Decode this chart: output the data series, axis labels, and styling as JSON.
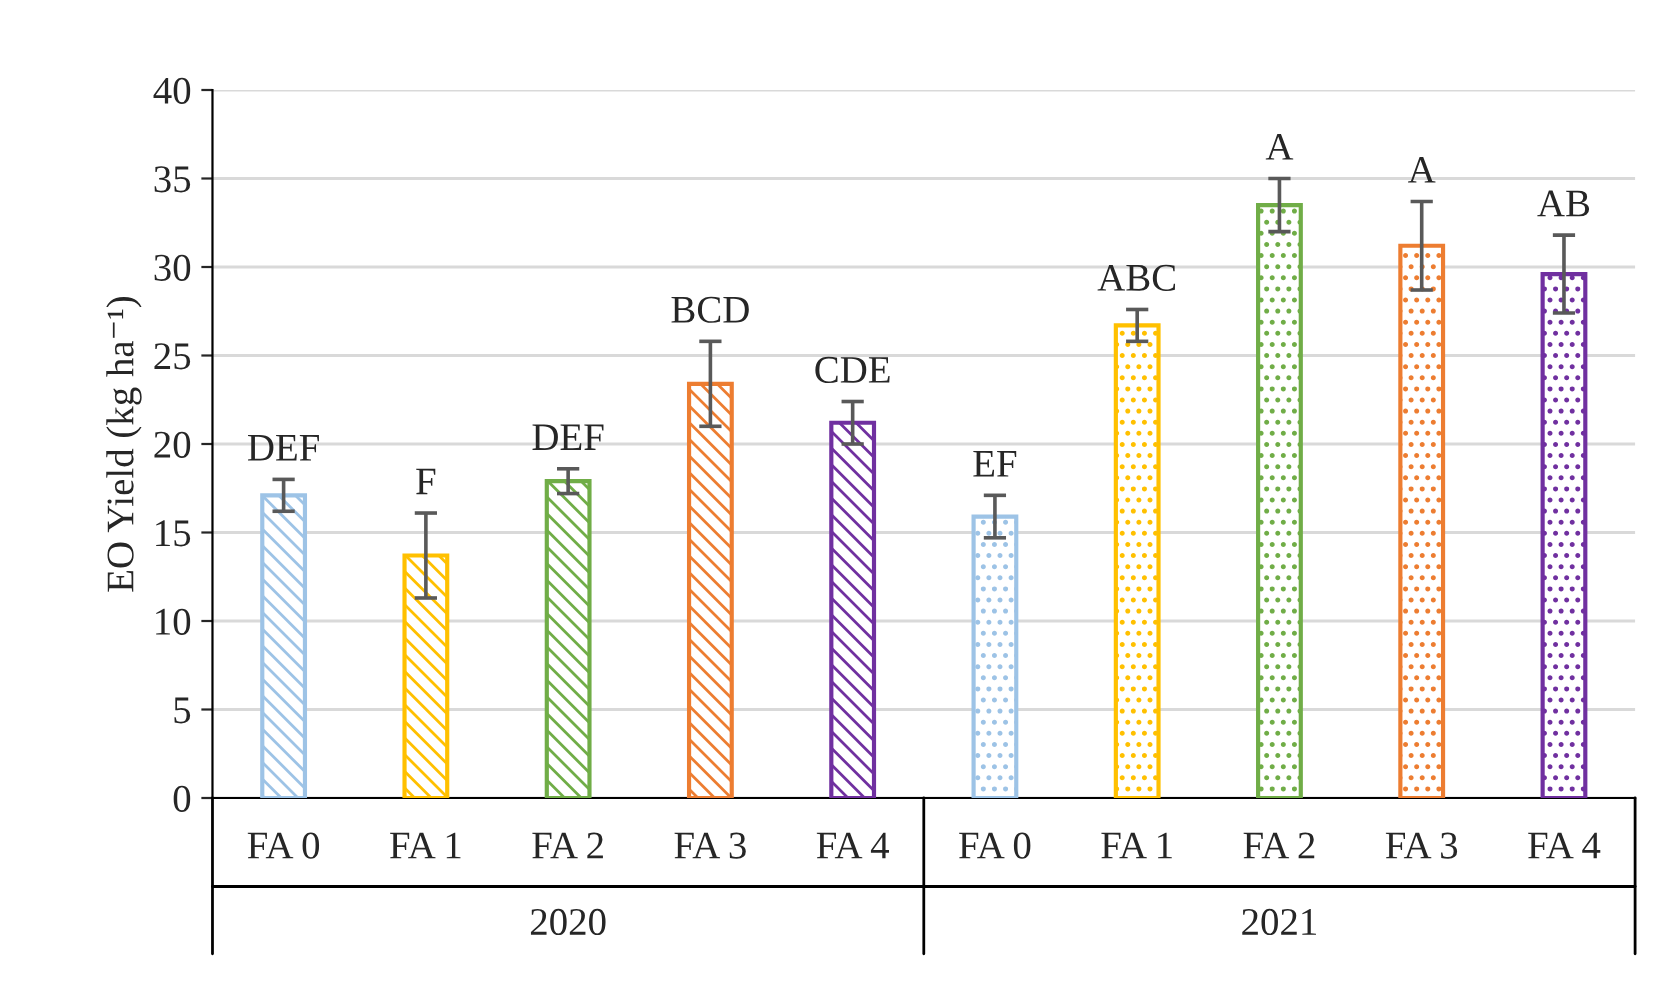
{
  "chart_data": {
    "type": "bar",
    "ylabel": "EO Yield (kg ha⁻¹)",
    "categories": [
      "FA 0",
      "FA 1",
      "FA 2",
      "FA 3",
      "FA 4",
      "FA 0",
      "FA 1",
      "FA 2",
      "FA 3",
      "FA 4"
    ],
    "values": [
      17.1,
      13.7,
      17.9,
      23.4,
      21.2,
      15.9,
      26.7,
      33.5,
      31.2,
      29.6
    ],
    "errors": [
      0.9,
      2.4,
      0.7,
      2.4,
      1.2,
      1.2,
      0.9,
      1.5,
      2.5,
      2.2
    ],
    "colors": [
      "#9dc3e6",
      "#ffc000",
      "#70ad47",
      "#ed7d31",
      "#7030a0",
      "#9dc3e6",
      "#ffc000",
      "#70ad47",
      "#ed7d31",
      "#7030a0"
    ],
    "annotations": [
      "DEF",
      "F",
      "DEF",
      "BCD",
      "CDE",
      "EF",
      "ABC",
      "A",
      "A",
      "AB",
      "2020",
      "2021"
    ],
    "ylim": [
      0,
      40
    ],
    "yticks": [
      0,
      5,
      10,
      15,
      20,
      25,
      30,
      35,
      40
    ],
    "grid": "y"
  }
}
